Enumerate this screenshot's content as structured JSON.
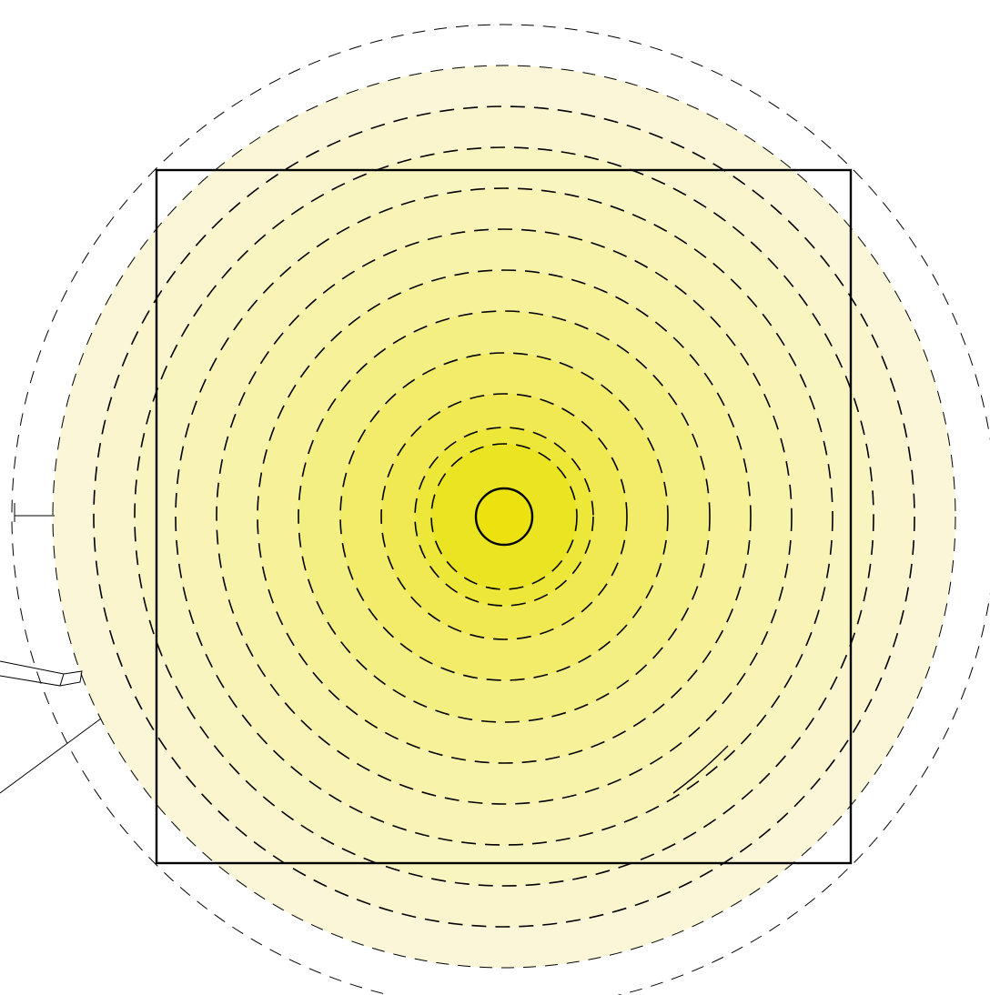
{
  "diagram": {
    "kind": "radial light falloff contour plot",
    "center_source": {
      "shape": "circle",
      "color": "#ebe20f"
    },
    "ring_count": 12,
    "contour_style": "dashed",
    "fill_gradient": {
      "inner_color": "#ebe422",
      "mid_color": "#f8f3a6",
      "outer_color": "#faf6d7"
    },
    "frame": {
      "shape": "square",
      "stroke": "#000000"
    },
    "stroke_color": "#000000",
    "background": "#ffffff"
  }
}
